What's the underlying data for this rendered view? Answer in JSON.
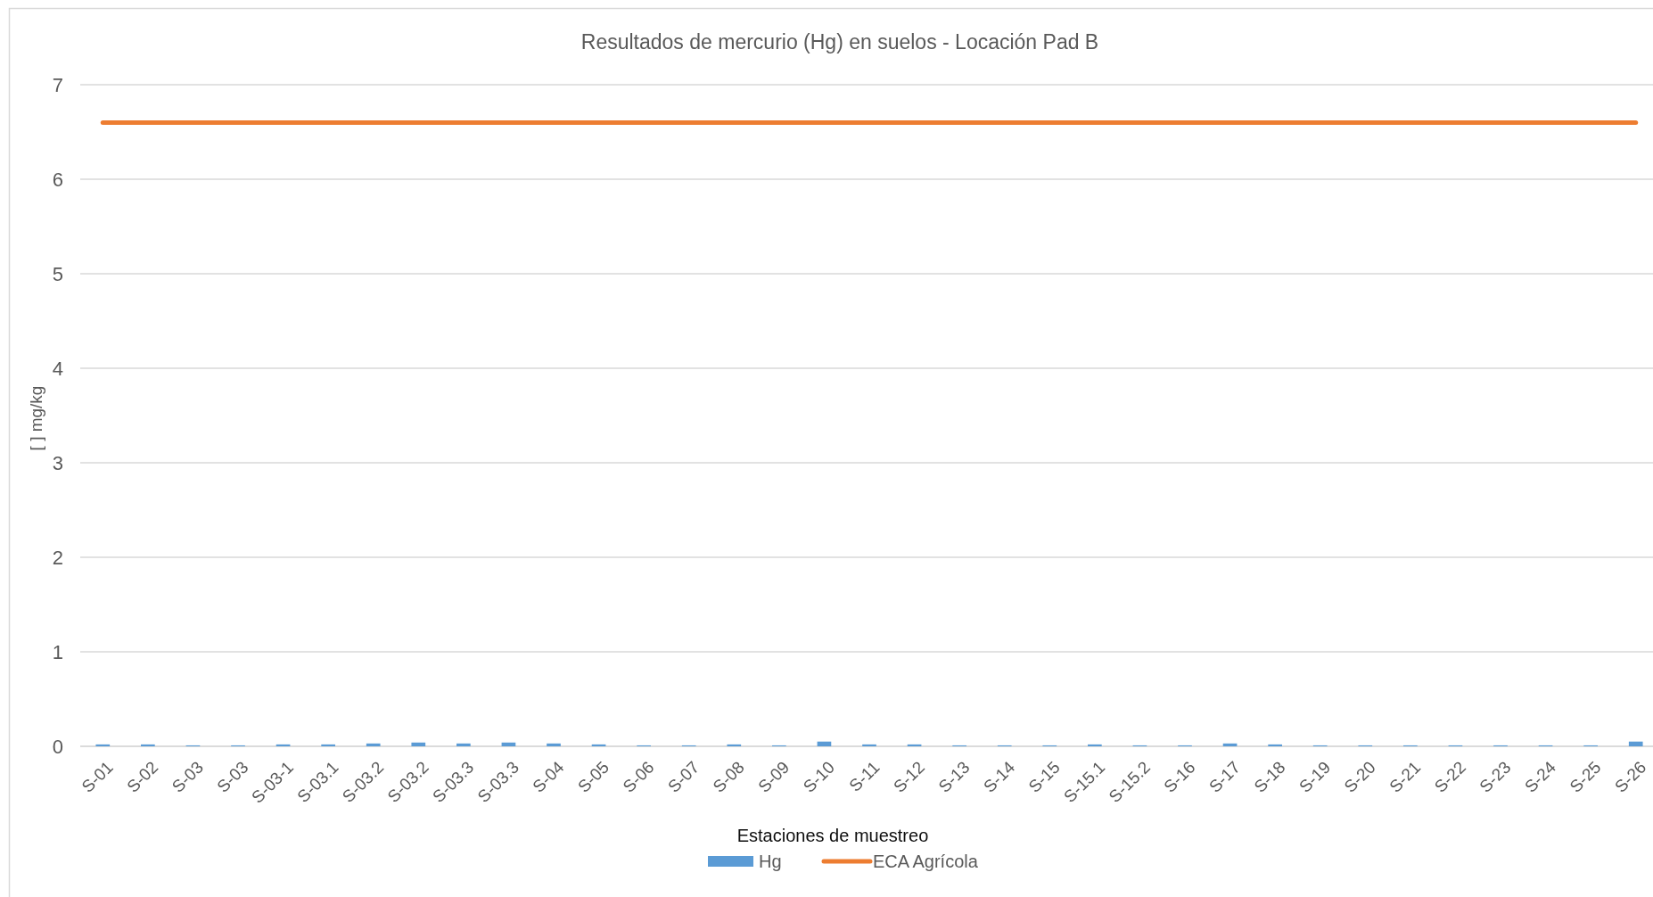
{
  "chart_data": {
    "type": "bar",
    "title": "Resultados de mercurio (Hg) en suelos - Locación Pad B",
    "xlabel": "Estaciones de muestreo",
    "ylabel": "[ ] mg/kg",
    "categories": [
      "S-01",
      "S-02",
      "S-03",
      "S-03",
      "S-03-1",
      "S-03.1",
      "S-03.2",
      "S-03.2",
      "S-03.3",
      "S-03.3",
      "S-04",
      "S-05",
      "S-06",
      "S-07",
      "S-08",
      "S-09",
      "S-10",
      "S-11",
      "S-12",
      "S-13",
      "S-14",
      "S-15",
      "S-15.1",
      "S-15.2",
      "S-16",
      "S-17",
      "S-18",
      "S-19",
      "S-20",
      "S-21",
      "S-22",
      "S-23",
      "S-24",
      "S-25",
      "S-26"
    ],
    "series": [
      {
        "name": "Hg",
        "color": "#5b9bd5",
        "values": [
          0.02,
          0.02,
          0.01,
          0.01,
          0.02,
          0.02,
          0.03,
          0.04,
          0.03,
          0.04,
          0.03,
          0.02,
          0.01,
          0.01,
          0.02,
          0.01,
          0.05,
          0.02,
          0.02,
          0.01,
          0.01,
          0.01,
          0.02,
          0.01,
          0.01,
          0.03,
          0.02,
          0.01,
          0.01,
          0.01,
          0.01,
          0.01,
          0.01,
          0.01,
          0.05
        ]
      },
      {
        "name": "ECA Agrícola",
        "type": "line",
        "color": "#ed7d31",
        "values": [
          6.6,
          6.6,
          6.6,
          6.6,
          6.6,
          6.6,
          6.6,
          6.6,
          6.6,
          6.6,
          6.6,
          6.6,
          6.6,
          6.6,
          6.6,
          6.6,
          6.6,
          6.6,
          6.6,
          6.6,
          6.6,
          6.6,
          6.6,
          6.6,
          6.6,
          6.6,
          6.6,
          6.6,
          6.6,
          6.6,
          6.6,
          6.6,
          6.6,
          6.6,
          6.6
        ]
      }
    ],
    "ylim": [
      0,
      7
    ],
    "yticks": [
      0,
      1,
      2,
      3,
      4,
      5,
      6,
      7
    ],
    "grid": "y",
    "legend": "bottom"
  }
}
